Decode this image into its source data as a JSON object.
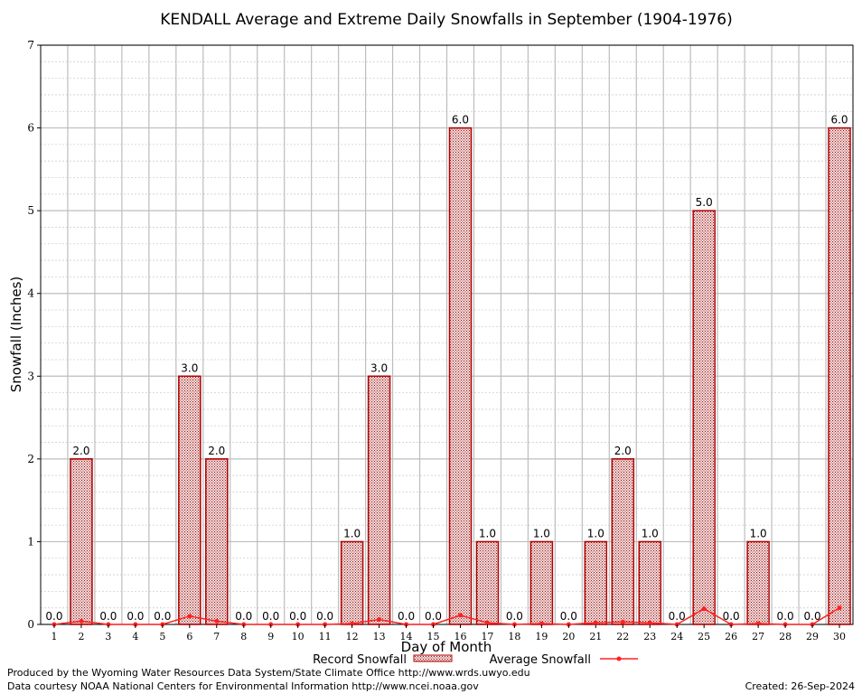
{
  "chart_data": {
    "type": "bar",
    "title": "KENDALL Average and Extreme Daily Snowfalls in September (1904-1976)",
    "xlabel": "Day of Month",
    "ylabel": "Snowfall (Inches)",
    "ylim": [
      0,
      7
    ],
    "yticks": [
      "0",
      "1",
      "2",
      "3",
      "4",
      "5",
      "6",
      "7"
    ],
    "categories": [
      "1",
      "2",
      "3",
      "4",
      "5",
      "6",
      "7",
      "8",
      "9",
      "10",
      "11",
      "12",
      "13",
      "14",
      "15",
      "16",
      "17",
      "18",
      "19",
      "20",
      "21",
      "22",
      "23",
      "24",
      "25",
      "26",
      "27",
      "28",
      "29",
      "30"
    ],
    "grid": true,
    "legend_position": "bottom",
    "series": [
      {
        "name": "Record Snowfall",
        "type": "bar",
        "color": "#b00000",
        "values": [
          0.0,
          2.0,
          0.0,
          0.0,
          0.0,
          3.0,
          2.0,
          0.0,
          0.0,
          0.0,
          0.0,
          1.0,
          3.0,
          0.0,
          0.0,
          6.0,
          1.0,
          0.0,
          1.0,
          0.0,
          1.0,
          2.0,
          1.0,
          0.0,
          5.0,
          0.0,
          1.0,
          0.0,
          0.0,
          6.0
        ],
        "labels": [
          "0.0",
          "2.0",
          "0.0",
          "0.0",
          "0.0",
          "3.0",
          "2.0",
          "0.0",
          "0.0",
          "0.0",
          "0.0",
          "1.0",
          "3.0",
          "0.0",
          "0.0",
          "6.0",
          "1.0",
          "0.0",
          "1.0",
          "0.0",
          "1.0",
          "2.0",
          "1.0",
          "0.0",
          "5.0",
          "0.0",
          "1.0",
          "0.0",
          "0.0",
          "6.0"
        ]
      },
      {
        "name": "Average Snowfall",
        "type": "line",
        "color": "#ff2020",
        "values": [
          0.0,
          0.04,
          0.0,
          0.0,
          0.0,
          0.1,
          0.04,
          0.0,
          0.0,
          0.0,
          0.0,
          0.01,
          0.06,
          0.0,
          0.0,
          0.11,
          0.02,
          0.0,
          0.01,
          0.0,
          0.02,
          0.03,
          0.02,
          0.0,
          0.19,
          0.0,
          0.01,
          0.0,
          0.0,
          0.2
        ]
      }
    ]
  },
  "footer": {
    "line1": "Produced by the Wyoming Water Resources Data System/State Climate Office http://www.wrds.uwyo.edu",
    "line2": "Data courtesy NOAA National Centers for Environmental Information http://www.ncei.noaa.gov",
    "created": "Created:  26-Sep-2024"
  }
}
